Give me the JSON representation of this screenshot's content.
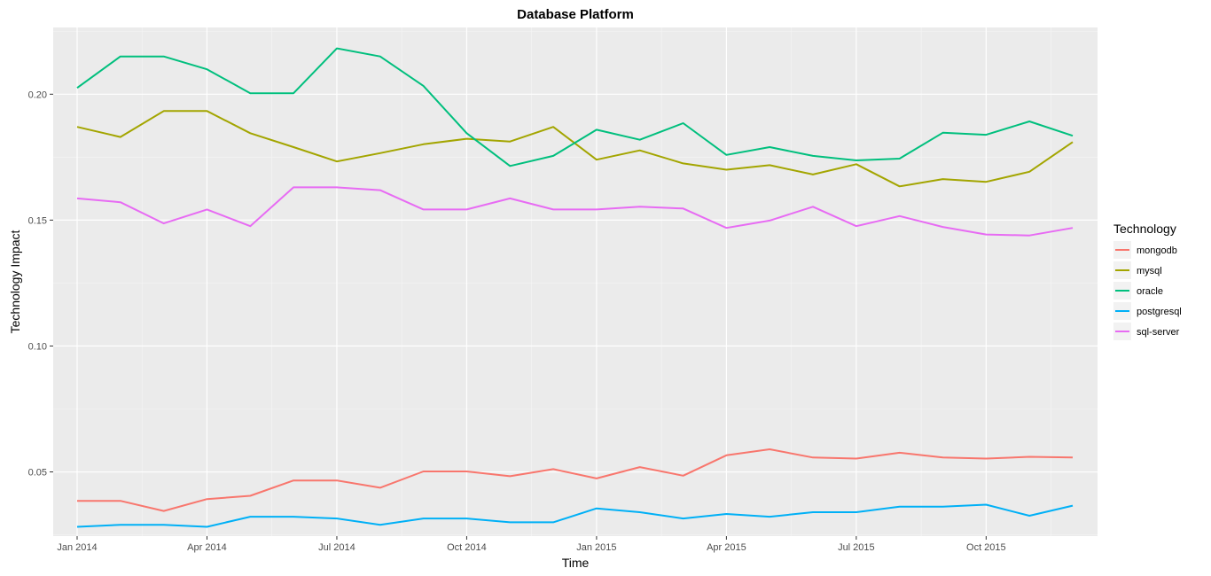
{
  "chart_data": {
    "type": "line",
    "title": "Database Platform",
    "xlabel": "Time",
    "ylabel": "Technology Impact",
    "x": [
      "2014-01",
      "2014-02",
      "2014-03",
      "2014-04",
      "2014-05",
      "2014-06",
      "2014-07",
      "2014-08",
      "2014-09",
      "2014-10",
      "2014-11",
      "2014-12",
      "2015-01",
      "2015-02",
      "2015-03",
      "2015-04",
      "2015-05",
      "2015-06",
      "2015-07",
      "2015-08",
      "2015-09",
      "2015-10",
      "2015-11",
      "2015-12"
    ],
    "x_ticks": [
      {
        "x": "2014-01",
        "label": "Jan 2014"
      },
      {
        "x": "2014-04",
        "label": "Apr 2014"
      },
      {
        "x": "2014-07",
        "label": "Jul 2014"
      },
      {
        "x": "2014-10",
        "label": "Oct 2014"
      },
      {
        "x": "2015-01",
        "label": "Jan 2015"
      },
      {
        "x": "2015-04",
        "label": "Apr 2015"
      },
      {
        "x": "2015-07",
        "label": "Jul 2015"
      },
      {
        "x": "2015-10",
        "label": "Oct 2015"
      }
    ],
    "y_ticks": [
      {
        "value": 0.05,
        "label": "0.05"
      },
      {
        "value": 0.1,
        "label": "0.10"
      },
      {
        "value": 0.15,
        "label": "0.15"
      },
      {
        "value": 0.2,
        "label": "0.20"
      }
    ],
    "ylim": [
      0.0245,
      0.2265
    ],
    "grid": true,
    "legend_title": "Technology",
    "legend_position": "right",
    "series": [
      {
        "name": "mongodb",
        "color": "#F8766D",
        "values": [
          0.0385,
          0.0385,
          0.0345,
          0.0392,
          0.0405,
          0.0466,
          0.0466,
          0.0437,
          0.0502,
          0.0502,
          0.0483,
          0.0511,
          0.0474,
          0.0519,
          0.0485,
          0.0566,
          0.059,
          0.0557,
          0.0553,
          0.0576,
          0.0557,
          0.0553,
          0.056,
          0.0557
        ]
      },
      {
        "name": "mysql",
        "color": "#A3A500",
        "values": [
          0.187,
          0.183,
          0.1933,
          0.1933,
          0.1845,
          0.179,
          0.1733,
          0.1766,
          0.1801,
          0.1823,
          0.1812,
          0.187,
          0.174,
          0.1777,
          0.1725,
          0.17,
          0.1718,
          0.1681,
          0.1722,
          0.1634,
          0.1663,
          0.1652,
          0.1692,
          0.181
        ]
      },
      {
        "name": "oracle",
        "color": "#00BF7D",
        "values": [
          0.2025,
          0.215,
          0.215,
          0.2099,
          0.2004,
          0.2004,
          0.2182,
          0.215,
          0.2033,
          0.1845,
          0.1715,
          0.1755,
          0.1859,
          0.1819,
          0.1885,
          0.1759,
          0.179,
          0.1755,
          0.1737,
          0.1744,
          0.1847,
          0.1839,
          0.1892,
          0.1835
        ]
      },
      {
        "name": "postgresql",
        "color": "#00B0F6",
        "values": [
          0.0282,
          0.029,
          0.029,
          0.0282,
          0.0322,
          0.0322,
          0.0315,
          0.029,
          0.0315,
          0.0315,
          0.03,
          0.03,
          0.0355,
          0.034,
          0.0315,
          0.0333,
          0.0322,
          0.034,
          0.034,
          0.0362,
          0.0362,
          0.037,
          0.0326,
          0.0366
        ]
      },
      {
        "name": "sql-server",
        "color": "#E76BF3",
        "values": [
          0.1586,
          0.1571,
          0.1487,
          0.1542,
          0.1476,
          0.163,
          0.163,
          0.1619,
          0.1542,
          0.1542,
          0.1586,
          0.1542,
          0.1542,
          0.1553,
          0.1546,
          0.1469,
          0.1498,
          0.1553,
          0.1476,
          0.1516,
          0.1473,
          0.1443,
          0.1439,
          0.1469
        ]
      }
    ]
  }
}
